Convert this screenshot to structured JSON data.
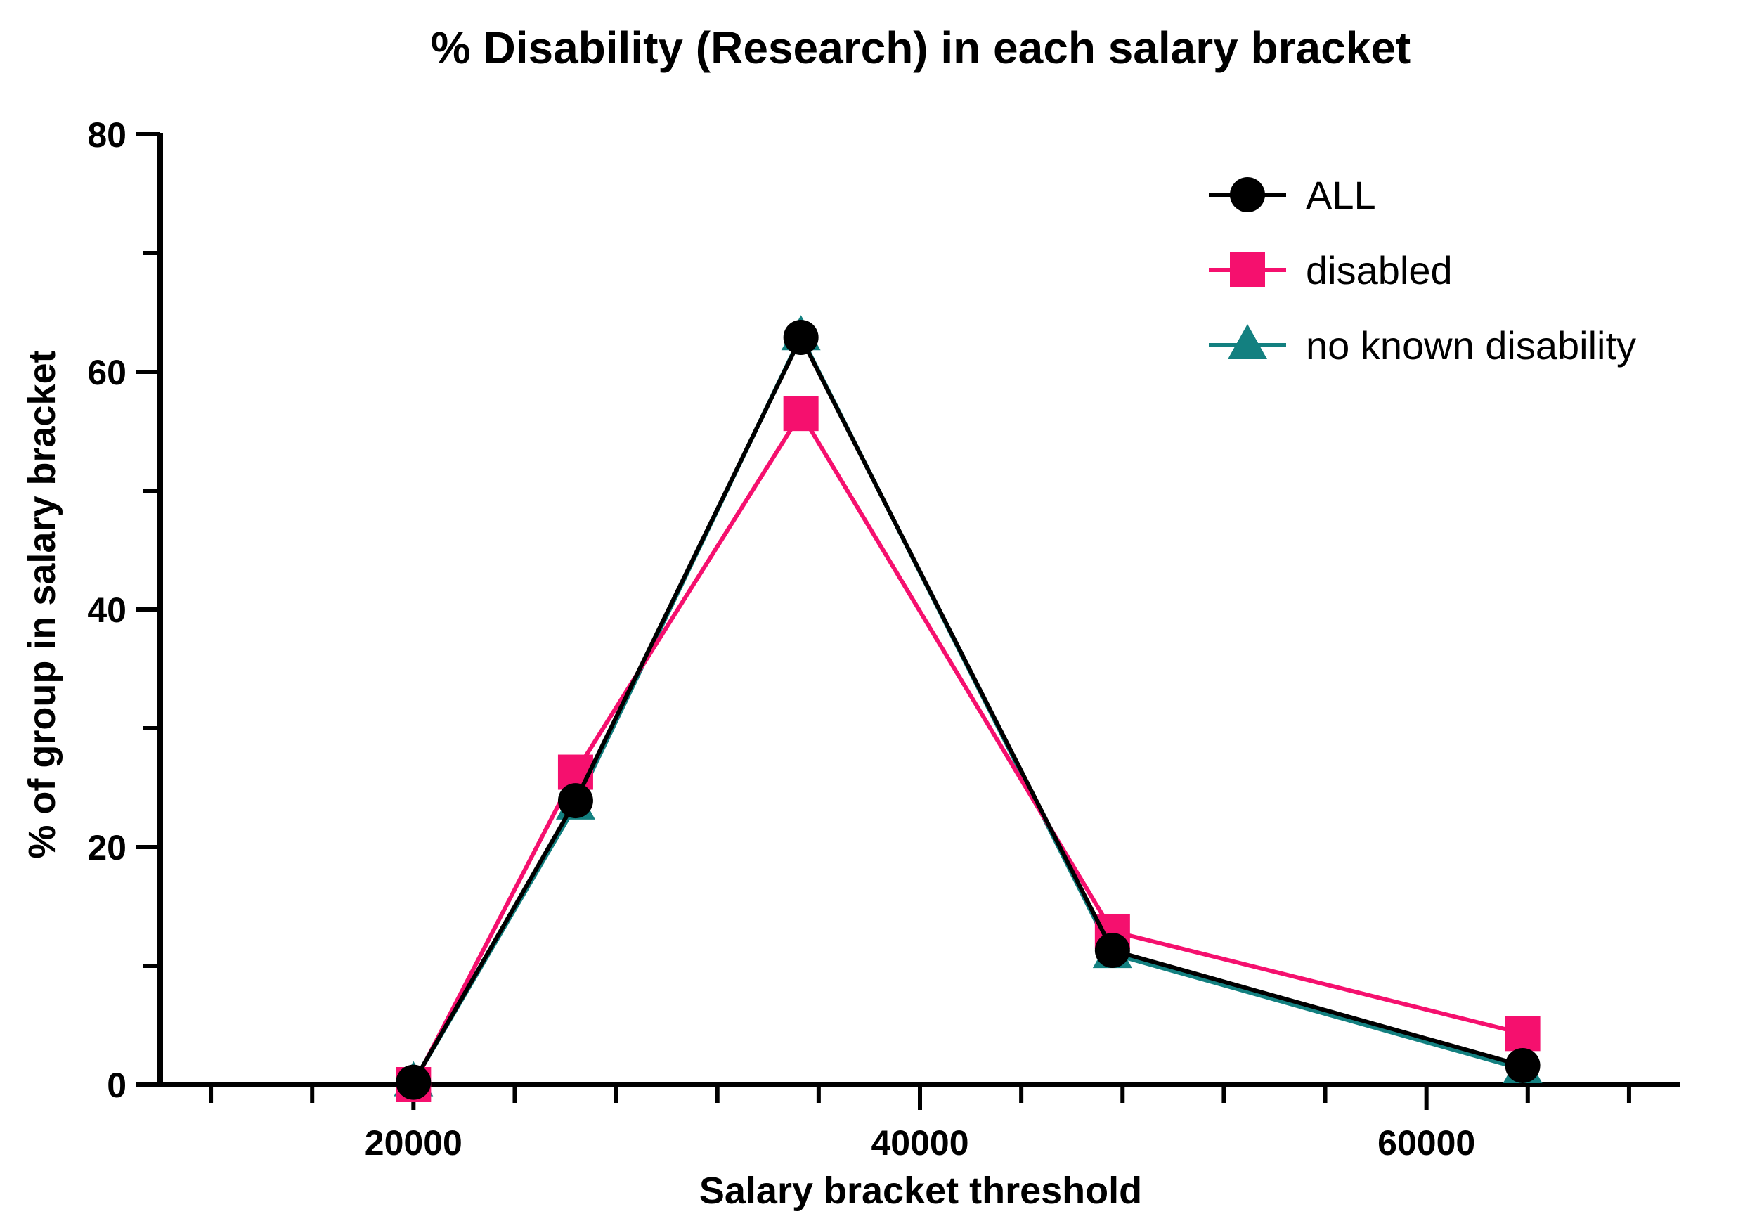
{
  "chart_data": {
    "type": "line",
    "title": "% Disability (Research) in each salary bracket",
    "xlabel": "Salary bracket threshold",
    "ylabel": "% of group in salary bracket",
    "xlim": [
      10000,
      70000
    ],
    "ylim": [
      0,
      80
    ],
    "xticks": [
      20000,
      40000,
      60000
    ],
    "xtick_labels": [
      "20000",
      "40000",
      "60000"
    ],
    "yticks": [
      0,
      20,
      40,
      60,
      80
    ],
    "ytick_labels": [
      "0",
      "20",
      "40",
      "60",
      "80"
    ],
    "x_minor_step": 4000,
    "y_minor_step": 10,
    "legend_position": "top-right",
    "grid": false,
    "x": [
      20000,
      26400,
      35300,
      47600,
      63800
    ],
    "series": [
      {
        "name": "no known disability",
        "values": [
          0.2,
          23.5,
          63.0,
          11.0,
          1.3
        ],
        "color": "#138080",
        "marker": "triangle"
      },
      {
        "name": "disabled",
        "values": [
          0.0,
          26.3,
          56.5,
          12.9,
          4.3
        ],
        "color": "#F5106E",
        "marker": "square"
      },
      {
        "name": "ALL",
        "values": [
          0.2,
          23.9,
          62.9,
          11.3,
          1.6
        ],
        "color": "#000000",
        "marker": "circle"
      }
    ],
    "legend_order": [
      "ALL",
      "disabled",
      "no known disability"
    ]
  }
}
